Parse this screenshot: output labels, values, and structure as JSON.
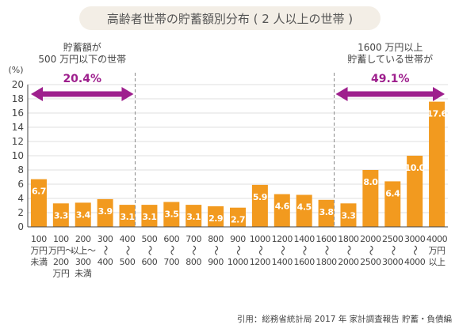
{
  "chart_data": {
    "type": "bar",
    "title": "高齢者世帯の貯蓄額別分布 ( 2 人以上の世帯 )",
    "ylabel": "(%)",
    "ylim": [
      0,
      20
    ],
    "yticks": [
      0,
      2,
      4,
      6,
      8,
      10,
      12,
      14,
      16,
      18,
      20
    ],
    "grid": true,
    "categories": [
      [
        "100",
        "万円",
        "未満"
      ],
      [
        "100",
        "万円〜",
        "200",
        "万円"
      ],
      [
        "200",
        "以上〜",
        "300",
        "未満"
      ],
      [
        "300",
        "〜",
        "400"
      ],
      [
        "400",
        "〜",
        "500"
      ],
      [
        "500",
        "〜",
        "600"
      ],
      [
        "600",
        "〜",
        "700"
      ],
      [
        "700",
        "〜",
        "800"
      ],
      [
        "800",
        "〜",
        "900"
      ],
      [
        "900",
        "〜",
        "1000"
      ],
      [
        "1000",
        "〜",
        "1200"
      ],
      [
        "1200",
        "〜",
        "1400"
      ],
      [
        "1400",
        "〜",
        "1600"
      ],
      [
        "1600",
        "〜",
        "1800"
      ],
      [
        "1800",
        "〜",
        "2000"
      ],
      [
        "2000",
        "〜",
        "2500"
      ],
      [
        "2500",
        "〜",
        "3000"
      ],
      [
        "3000",
        "〜",
        "4000"
      ],
      [
        "4000",
        "万円",
        "以上"
      ]
    ],
    "values": [
      6.7,
      3.3,
      3.4,
      3.9,
      3.1,
      3.1,
      3.5,
      3.1,
      2.9,
      2.7,
      5.9,
      4.6,
      4.5,
      3.8,
      3.3,
      8.0,
      6.4,
      10.0,
      17.6
    ],
    "value_labels": [
      "6.7",
      "3.3",
      "3.4",
      "3.9",
      "3.1",
      "3.1",
      "3.5",
      "3.1",
      "2.9",
      "2.7",
      "5.9",
      "4.6",
      "4.5",
      "3.8",
      "3.3",
      "8.0",
      "6.4",
      "10.0",
      "17.6"
    ],
    "annotations": [
      {
        "lines": [
          "貯蓄額が",
          "500 万円以下の世帯"
        ],
        "value": "20.4%",
        "range": "from-start",
        "divider_after_category": 4
      },
      {
        "lines": [
          "1600 万円以上",
          "貯蓄している世帯が"
        ],
        "value": "49.1%",
        "range": "to-end",
        "divider_after_category": 13
      }
    ],
    "source": "引用：総務省統計局 2017 年 家計調査報告 貯蓄・負債編"
  },
  "colors": {
    "bar": "#F29A1F",
    "bar_label": "#FFFFFF",
    "arrow": "#9E1F8D",
    "annotation_value": "#9E1F8D",
    "title_text": "#555555",
    "title_bg": "#F3EEE6",
    "axis": "#444444",
    "grid": "#D5D5D5",
    "divider": "#8A8A8A"
  }
}
